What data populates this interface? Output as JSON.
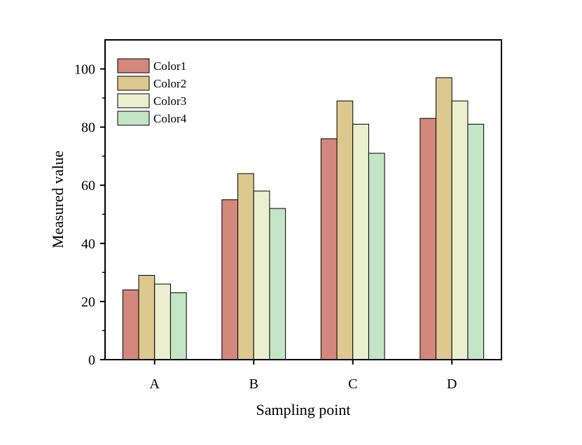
{
  "chart_data": {
    "type": "bar",
    "categories": [
      "A",
      "B",
      "C",
      "D"
    ],
    "series": [
      {
        "name": "Color1",
        "values": [
          24,
          55,
          76,
          83
        ],
        "color": "#d4877d"
      },
      {
        "name": "Color2",
        "values": [
          29,
          64,
          89,
          97
        ],
        "color": "#ddc98e"
      },
      {
        "name": "Color3",
        "values": [
          26,
          58,
          81,
          89
        ],
        "color": "#eaefcf"
      },
      {
        "name": "Color4",
        "values": [
          23,
          52,
          71,
          81
        ],
        "color": "#c4e5c6"
      }
    ],
    "xlabel": "Sampling point",
    "ylabel": "Measured value",
    "ylim": [
      0,
      110
    ],
    "yticks": [
      0,
      20,
      40,
      60,
      80,
      100
    ],
    "grid": false,
    "legend_position": "top-left"
  }
}
